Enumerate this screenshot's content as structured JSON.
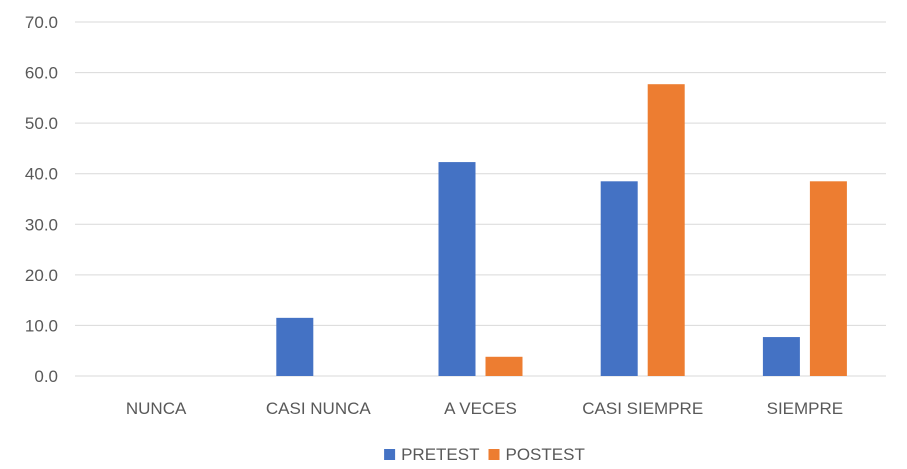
{
  "chart_data": {
    "type": "bar",
    "categories": [
      "NUNCA",
      "CASI NUNCA",
      "A VECES",
      "CASI SIEMPRE",
      "SIEMPRE"
    ],
    "series": [
      {
        "name": "PRETEST",
        "values": [
          0.0,
          11.5,
          42.3,
          38.5,
          7.7
        ],
        "color": "#4472c4"
      },
      {
        "name": "POSTEST",
        "values": [
          0.0,
          0.0,
          3.8,
          57.7,
          38.5
        ],
        "color": "#ed7d31"
      }
    ],
    "title": "",
    "xlabel": "",
    "ylabel": "",
    "ylim": [
      0,
      70
    ],
    "yticks": [
      "0.0",
      "10.0",
      "20.0",
      "30.0",
      "40.0",
      "50.0",
      "60.0",
      "70.0"
    ],
    "grid": true,
    "legend_position": "bottom"
  }
}
